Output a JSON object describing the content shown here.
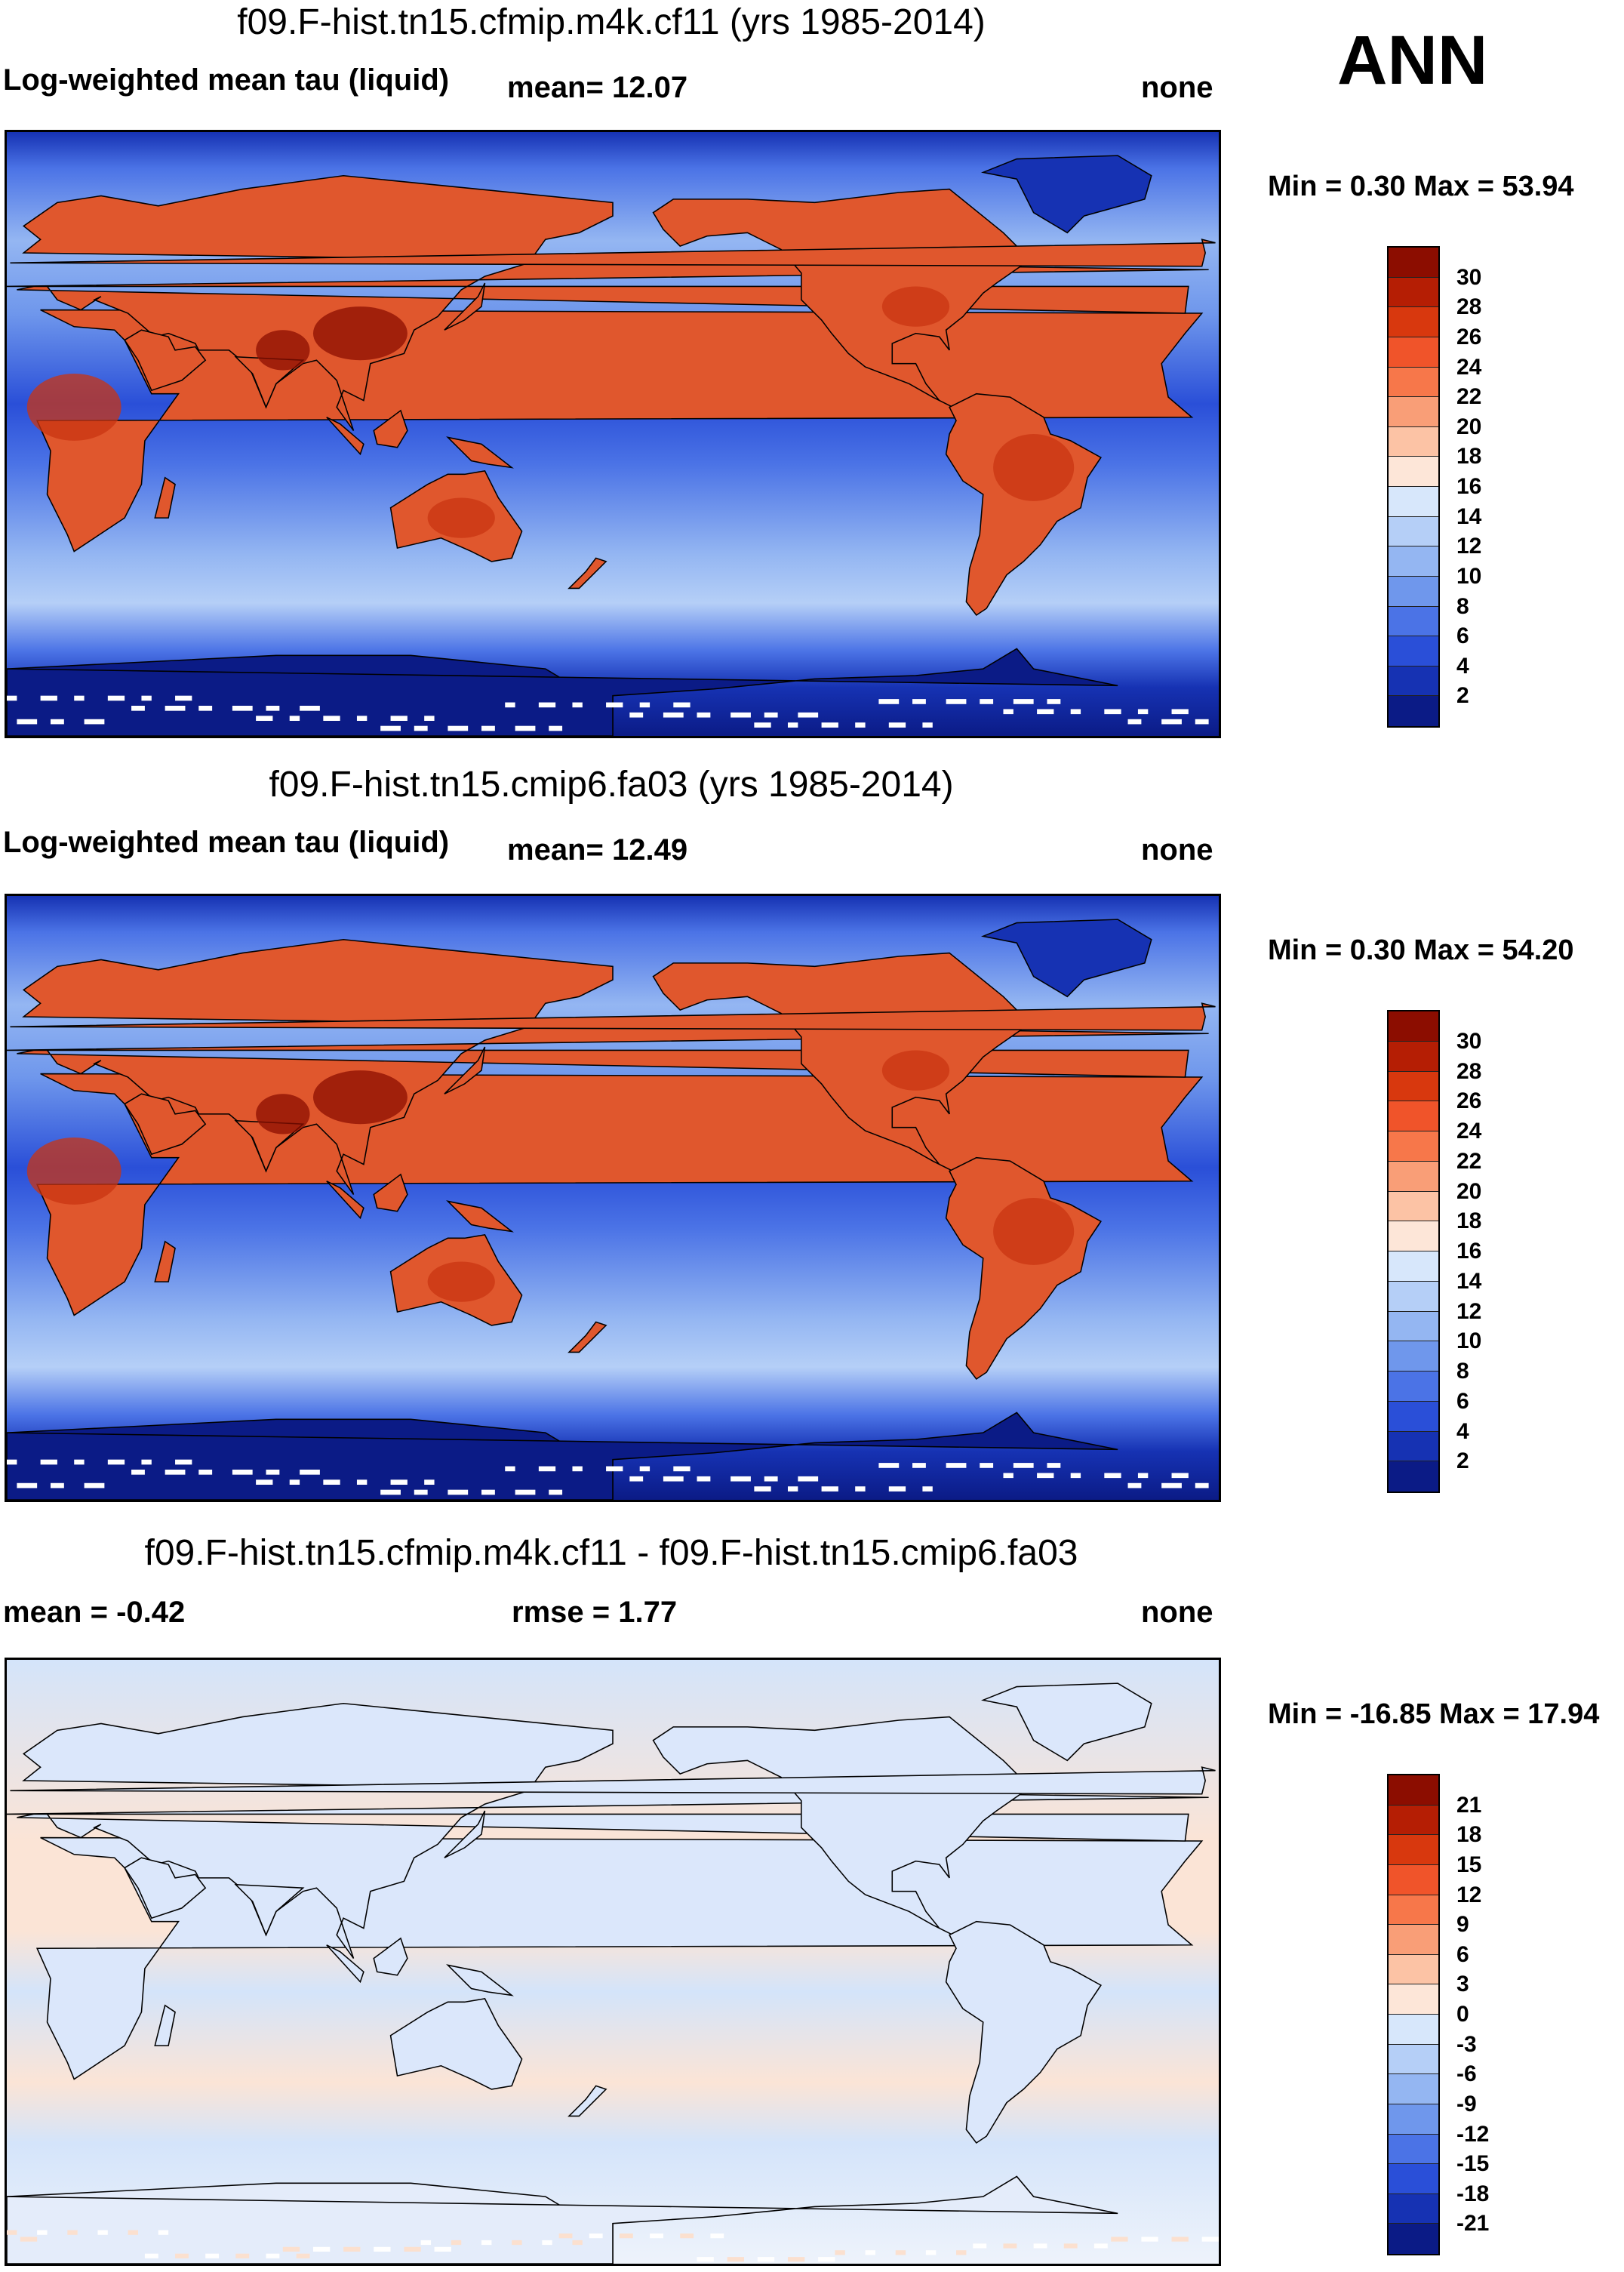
{
  "season": "ANN",
  "panels": [
    {
      "title": "f09.F-hist.tn15.cfmip.m4k.cf11 (yrs 1985-2014)",
      "left_label": "Log-weighted mean tau (liquid)",
      "middle_label": "mean=  12.07",
      "right_label": "none",
      "minmax": "Min =   0.30 Max =  53.94",
      "colorbar": {
        "labels": [
          "30",
          "28",
          "26",
          "24",
          "22",
          "20",
          "18",
          "16",
          "14",
          "12",
          "10",
          "8",
          "6",
          "4",
          "2"
        ],
        "colors": [
          "#8c0d00",
          "#b51e04",
          "#d8380e",
          "#f0542a",
          "#f7774a",
          "#f99e77",
          "#fcc3a5",
          "#fde6d8",
          "#d7e7fb",
          "#b5cff7",
          "#94b6f2",
          "#6f97ec",
          "#4b73e6",
          "#2a4fd8",
          "#1632b3",
          "#0b1b86"
        ]
      },
      "style": "field"
    },
    {
      "title": "f09.F-hist.tn15.cmip6.fa03 (yrs 1985-2014)",
      "left_label": "Log-weighted mean tau (liquid)",
      "middle_label": "mean=  12.49",
      "right_label": "none",
      "minmax": "Min =   0.30 Max =  54.20",
      "colorbar": {
        "labels": [
          "30",
          "28",
          "26",
          "24",
          "22",
          "20",
          "18",
          "16",
          "14",
          "12",
          "10",
          "8",
          "6",
          "4",
          "2"
        ],
        "colors": [
          "#8c0d00",
          "#b51e04",
          "#d8380e",
          "#f0542a",
          "#f7774a",
          "#f99e77",
          "#fcc3a5",
          "#fde6d8",
          "#d7e7fb",
          "#b5cff7",
          "#94b6f2",
          "#6f97ec",
          "#4b73e6",
          "#2a4fd8",
          "#1632b3",
          "#0b1b86"
        ]
      },
      "style": "field"
    },
    {
      "title": "f09.F-hist.tn15.cfmip.m4k.cf11 - f09.F-hist.tn15.cmip6.fa03",
      "left_label": "mean =  -0.42",
      "middle_label": "rmse =   1.77",
      "right_label": "none",
      "minmax": "Min = -16.85 Max =  17.94",
      "colorbar": {
        "labels": [
          "21",
          "18",
          "15",
          "12",
          "9",
          "6",
          "3",
          "0",
          "-3",
          "-6",
          "-9",
          "-12",
          "-15",
          "-18",
          "-21"
        ],
        "colors": [
          "#8c0d00",
          "#b51e04",
          "#d8380e",
          "#f0542a",
          "#f7774a",
          "#f99e77",
          "#fcc3a5",
          "#fde6d8",
          "#d7e7fb",
          "#b5cff7",
          "#94b6f2",
          "#6f97ec",
          "#4b73e6",
          "#2a4fd8",
          "#1632b3",
          "#0b1b86"
        ]
      },
      "style": "diff"
    }
  ]
}
